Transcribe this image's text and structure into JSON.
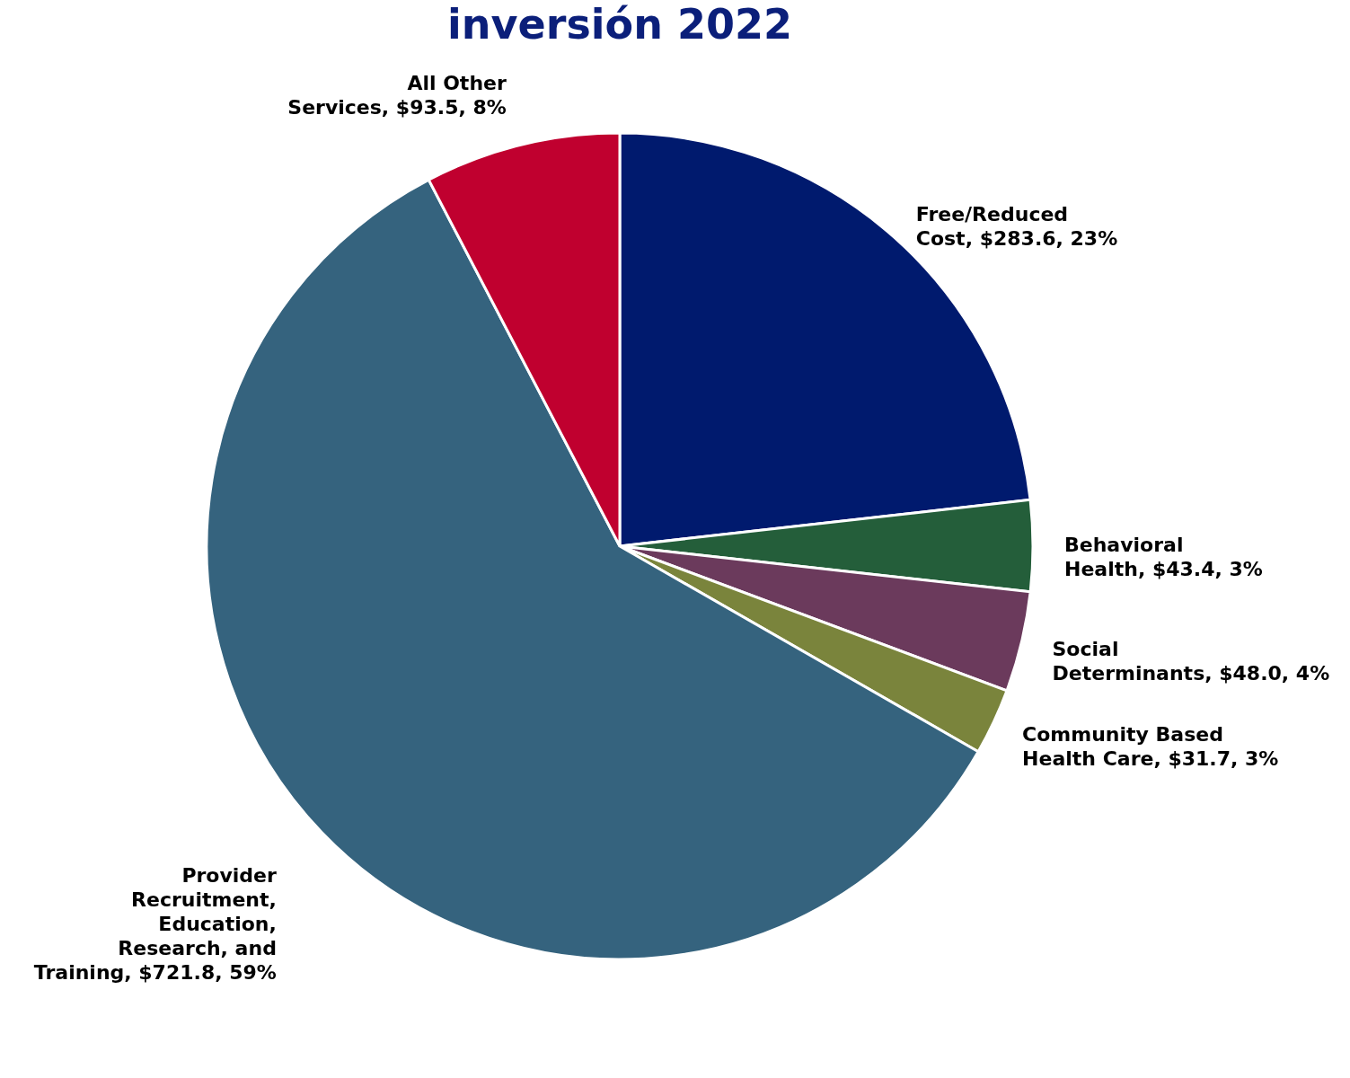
{
  "chart_data": {
    "type": "pie",
    "title": "inversión 2022",
    "categories": [
      "Free/Reduced Cost",
      "Behavioral Health",
      "Social Determinants",
      "Community Based Health Care",
      "Provider Recruitment, Education, Research, and Training",
      "All Other Services"
    ],
    "values": [
      283.6,
      43.4,
      48.0,
      31.7,
      721.8,
      93.5
    ],
    "value_labels": [
      "$283.6, 23%",
      "$43.4, 3%",
      "$48.0, 4%",
      "$31.7, 3%",
      "$721.8, 59%",
      "$93.5, 8%"
    ],
    "colors": [
      "#001a6e",
      "#245e3a",
      "#6b3a5c",
      "#7a843c",
      "#35637e",
      "#c0002f"
    ],
    "legend": false
  }
}
